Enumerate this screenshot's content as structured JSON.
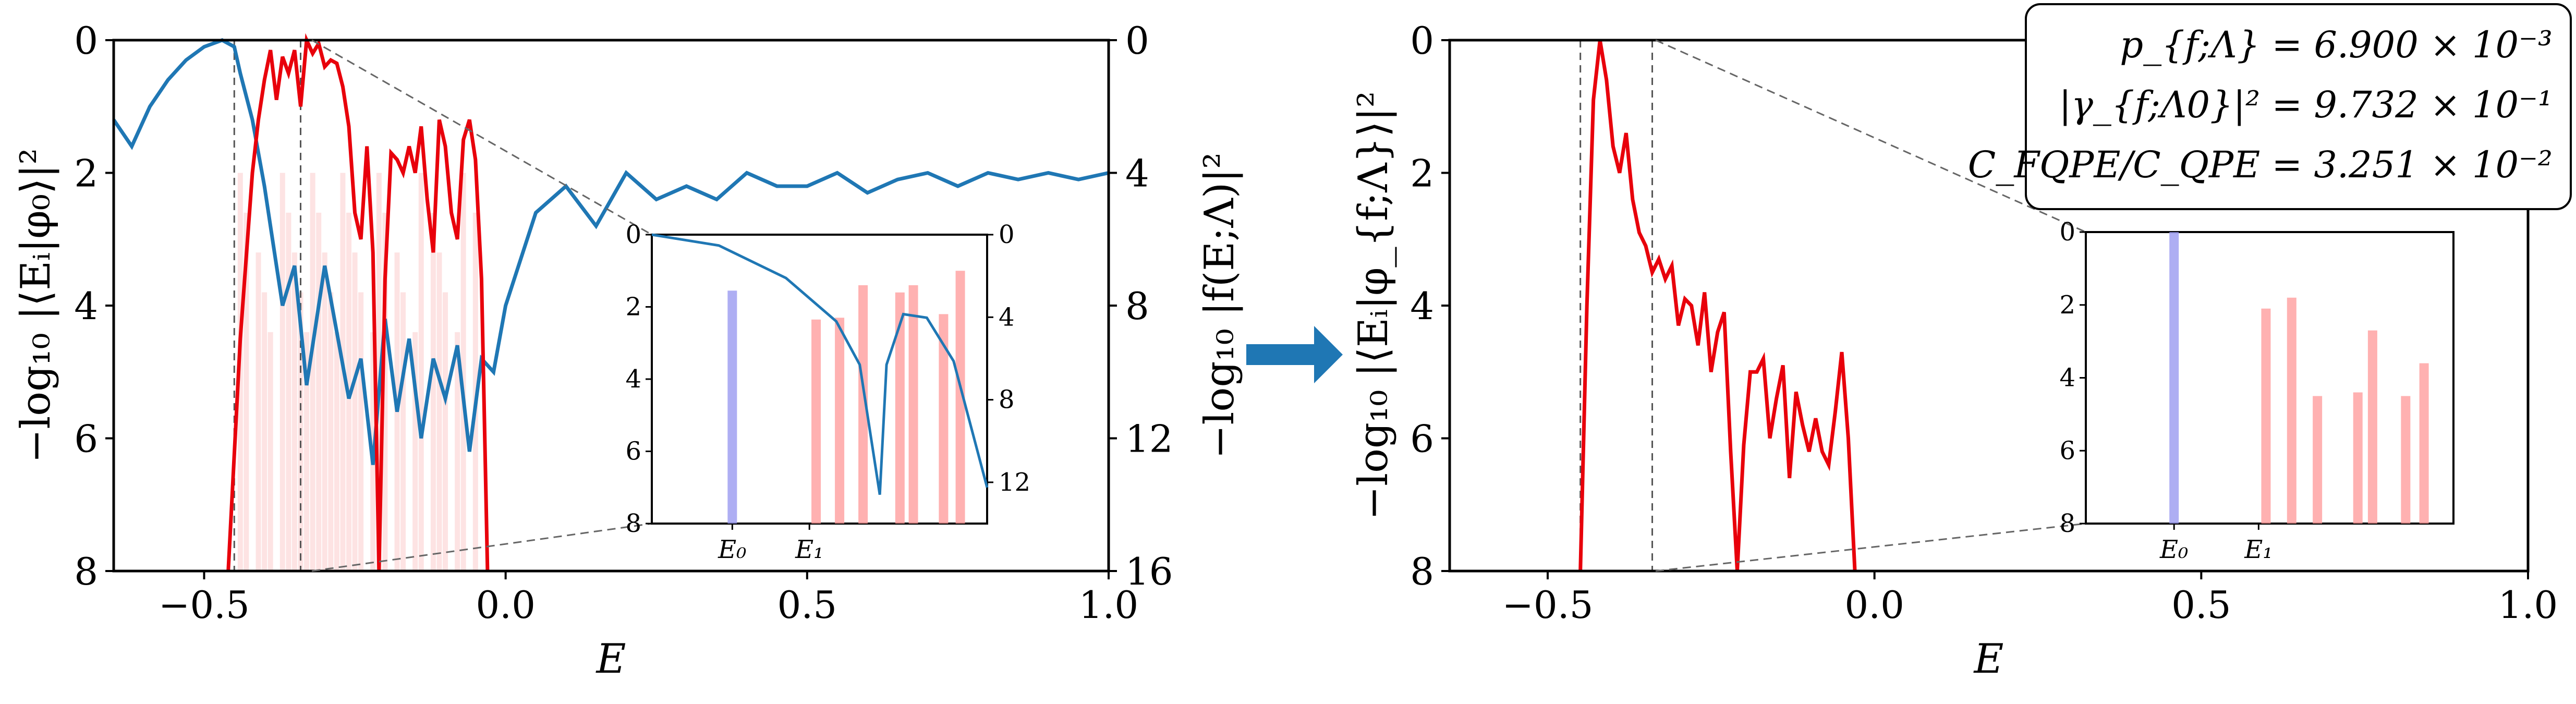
{
  "chart_data": [
    {
      "type": "line",
      "xlabel": "E",
      "ylabel": "−log₁₀ |⟨Eᵢ|φ₀⟩|²",
      "y2label": "−log₁₀ |f(E;Λ)|²",
      "xlim": [
        -0.65,
        1.0
      ],
      "ylim": [
        8,
        0
      ],
      "y2lim": [
        16,
        0
      ],
      "xticks": [
        "−0.5",
        "0.0",
        "0.5",
        "1.0"
      ],
      "yticks": [
        "0",
        "2",
        "4",
        "6",
        "8"
      ],
      "y2ticks": [
        "0",
        "4",
        "8",
        "12",
        "16"
      ],
      "colors": {
        "spectrum": "#e8000b",
        "filter": "#1f77b4",
        "bars": "#ff9e9e",
        "ground_bar": "#9a9af0"
      },
      "series": [
        {
          "x": [
            -0.46,
            -0.44,
            -0.42,
            -0.41,
            -0.4,
            -0.39,
            -0.38,
            -0.37,
            -0.36,
            -0.35,
            -0.34,
            -0.33,
            -0.32,
            -0.31,
            -0.3,
            -0.29,
            -0.28,
            -0.27,
            -0.26,
            -0.25,
            -0.24,
            -0.23,
            -0.22,
            -0.21,
            -0.2,
            -0.19,
            -0.18,
            -0.17,
            -0.16,
            -0.15,
            -0.14,
            -0.13,
            -0.12,
            -0.11,
            -0.1,
            -0.09,
            -0.08,
            -0.07,
            -0.06,
            -0.05,
            -0.04,
            -0.03
          ],
          "values": [
            8.0,
            4.5,
            2.0,
            1.2,
            0.6,
            0.15,
            0.9,
            0.25,
            0.5,
            0.15,
            1.0,
            0.0,
            0.2,
            0.05,
            0.4,
            0.3,
            0.35,
            0.7,
            1.3,
            2.6,
            3.0,
            1.6,
            3.2,
            8.0,
            3.6,
            1.7,
            1.8,
            2.0,
            1.6,
            2.0,
            1.3,
            2.4,
            3.2,
            1.2,
            1.6,
            2.6,
            3.0,
            1.5,
            1.2,
            1.8,
            3.6,
            8.0
          ]
        },
        {
          "x": [
            -0.65,
            -0.62,
            -0.59,
            -0.56,
            -0.53,
            -0.5,
            -0.47,
            -0.45,
            -0.44,
            -0.42,
            -0.4,
            -0.38,
            -0.37,
            -0.35,
            -0.33,
            -0.31,
            -0.3,
            -0.28,
            -0.26,
            -0.24,
            -0.22,
            -0.2,
            -0.18,
            -0.16,
            -0.14,
            -0.12,
            -0.1,
            -0.08,
            -0.06,
            -0.04,
            -0.02,
            0.0,
            0.05,
            0.1,
            0.15,
            0.2,
            0.25,
            0.3,
            0.35,
            0.4,
            0.45,
            0.5,
            0.55,
            0.6,
            0.65,
            0.7,
            0.75,
            0.8,
            0.85,
            0.9,
            0.95,
            1.0
          ],
          "values": [
            1.2,
            1.6,
            1.0,
            0.6,
            0.3,
            0.1,
            0.0,
            0.1,
            0.5,
            1.2,
            2.2,
            3.4,
            4.0,
            3.4,
            5.2,
            4.0,
            3.4,
            4.4,
            5.4,
            4.8,
            6.4,
            4.2,
            5.6,
            4.5,
            6.0,
            4.8,
            5.4,
            4.6,
            6.2,
            4.8,
            5.0,
            4.0,
            2.6,
            2.2,
            2.8,
            2.0,
            2.4,
            2.2,
            2.4,
            2.0,
            2.2,
            2.2,
            2.0,
            2.3,
            2.1,
            2.0,
            2.2,
            2.0,
            2.1,
            2.0,
            2.1,
            2.0
          ]
        }
      ],
      "vlines": [
        -0.45,
        -0.34
      ],
      "bars_x": [
        -0.44,
        -0.43,
        -0.41,
        -0.4,
        -0.39,
        -0.37,
        -0.36,
        -0.35,
        -0.34,
        -0.33,
        -0.32,
        -0.31,
        -0.3,
        -0.29,
        -0.28,
        -0.27,
        -0.26,
        -0.25,
        -0.24,
        -0.22,
        -0.21,
        -0.2,
        -0.18,
        -0.17,
        -0.15,
        -0.14,
        -0.12,
        -0.11,
        -0.1,
        -0.08,
        -0.07,
        -0.05
      ],
      "inset": {
        "xticks": [
          "E₀",
          "E₁"
        ],
        "yticks": [
          "0",
          "2",
          "4",
          "6",
          "8"
        ],
        "y2ticks": [
          "0",
          "4",
          "8",
          "12"
        ],
        "ground_bar": 1.55,
        "bars": [
          2.35,
          2.3,
          1.4,
          1.6,
          1.4,
          2.2,
          1.0
        ]
      }
    },
    {
      "type": "line",
      "xlabel": "E",
      "ylabel": "−log₁₀ |⟨Eᵢ|φ_{f;Λ}⟩|²",
      "xlim": [
        -0.65,
        1.0
      ],
      "ylim": [
        8,
        0
      ],
      "xticks": [
        "−0.5",
        "0.0",
        "0.5",
        "1.0"
      ],
      "yticks": [
        "0",
        "2",
        "4",
        "6",
        "8"
      ],
      "series": [
        {
          "x": [
            -0.45,
            -0.44,
            -0.43,
            -0.42,
            -0.41,
            -0.4,
            -0.39,
            -0.38,
            -0.37,
            -0.36,
            -0.35,
            -0.34,
            -0.33,
            -0.32,
            -0.31,
            -0.3,
            -0.29,
            -0.28,
            -0.27,
            -0.26,
            -0.25,
            -0.24,
            -0.23,
            -0.22,
            -0.21,
            -0.2,
            -0.19,
            -0.18,
            -0.17,
            -0.16,
            -0.15,
            -0.14,
            -0.13,
            -0.12,
            -0.11,
            -0.1,
            -0.09,
            -0.08,
            -0.07,
            -0.06,
            -0.05,
            -0.04,
            -0.03
          ],
          "values": [
            8.0,
            4.0,
            0.9,
            0.0,
            0.6,
            1.6,
            2.0,
            1.4,
            2.4,
            2.9,
            3.1,
            3.5,
            3.3,
            3.6,
            3.4,
            4.3,
            3.9,
            4.0,
            4.6,
            3.8,
            5.0,
            4.4,
            4.1,
            6.2,
            8.0,
            6.1,
            5.0,
            5.0,
            4.8,
            6.0,
            5.4,
            4.9,
            6.6,
            5.3,
            5.8,
            6.2,
            5.7,
            6.2,
            6.4,
            5.6,
            4.7,
            6.0,
            8.0
          ]
        }
      ],
      "vlines": [
        -0.45,
        -0.34
      ],
      "inset": {
        "xticks": [
          "E₀",
          "E₁"
        ],
        "yticks": [
          "0",
          "2",
          "4",
          "6",
          "8"
        ],
        "ground_bar": 0.0,
        "bars": [
          2.1,
          1.8,
          4.5,
          4.4,
          2.7,
          4.5,
          3.6
        ]
      },
      "annotations": [
        "p_{f;Λ} = 6.900 × 10⁻³",
        "|γ_{f;Λ0}|² = 9.732 × 10⁻¹",
        "C_FQPE/C_QPE = 3.251 × 10⁻²"
      ]
    }
  ]
}
